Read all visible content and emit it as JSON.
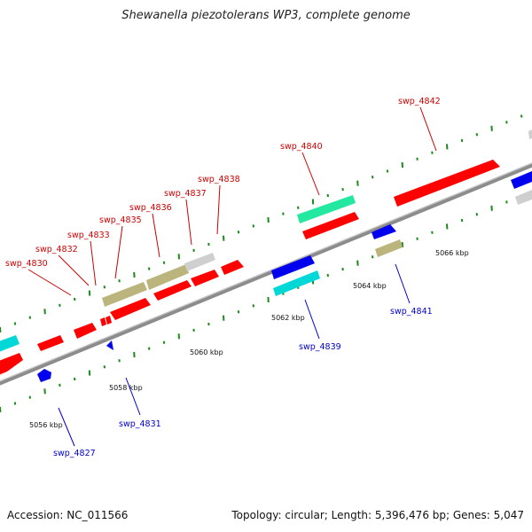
{
  "title": "Shewanella piezotolerans WP3, complete genome",
  "accession": "Accession: NC_011566",
  "topology": "Topology: circular; Length: 5,396,476 bp; Genes: 5,047",
  "colors": {
    "red": "#ff0000",
    "blue": "#0000ee",
    "cyan": "#00d8d8",
    "mint": "#22e8a0",
    "khaki": "#bbb47c",
    "grey": "#cfcfcf",
    "label_top": "#cc0000",
    "label_bottom": "#0000cc",
    "tick": "#1a8a1a",
    "backbone": "#8c8c8c"
  },
  "kbp_labels": [
    "5056 kbp",
    "5058 kbp",
    "5060 kbp",
    "5062 kbp",
    "5064 kbp",
    "5066 kbp"
  ],
  "top_labels": [
    "swp_4830",
    "swp_4832",
    "swp_4833",
    "swp_4835",
    "swp_4836",
    "swp_4837",
    "swp_4838",
    "swp_4840",
    "swp_4842"
  ],
  "bottom_labels": [
    "swp_4827",
    "swp_4831",
    "swp_4839",
    "swp_4841"
  ]
}
